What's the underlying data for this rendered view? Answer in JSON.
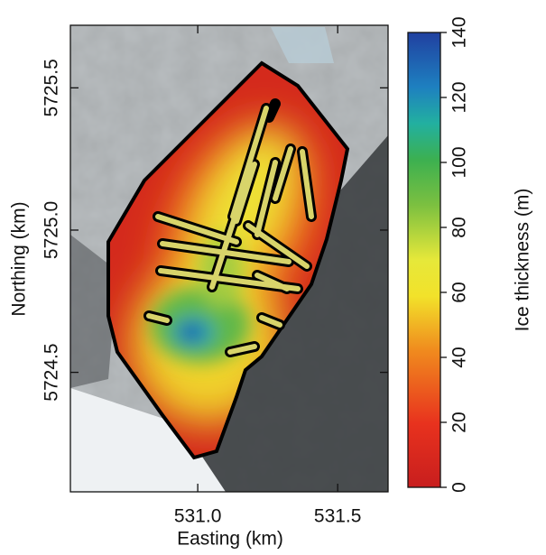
{
  "chart_data": {
    "type": "map",
    "x_label": "Easting (km)",
    "y_label": "Northing (km)",
    "colorbar_label": "Ice thickness (m)",
    "xlim": [
      530.545,
      531.68
    ],
    "xticks": [
      {
        "value": 531,
        "label": "531.0"
      },
      531.5
    ],
    "ylim": [
      5724.08,
      5725.72
    ],
    "yticks": [
      5724.5,
      {
        "value": 5725,
        "label": "5725.0"
      },
      5725.5
    ],
    "clim": [
      0,
      140
    ],
    "cticks": [
      0,
      20,
      40,
      60,
      80,
      100,
      120,
      140
    ]
  }
}
